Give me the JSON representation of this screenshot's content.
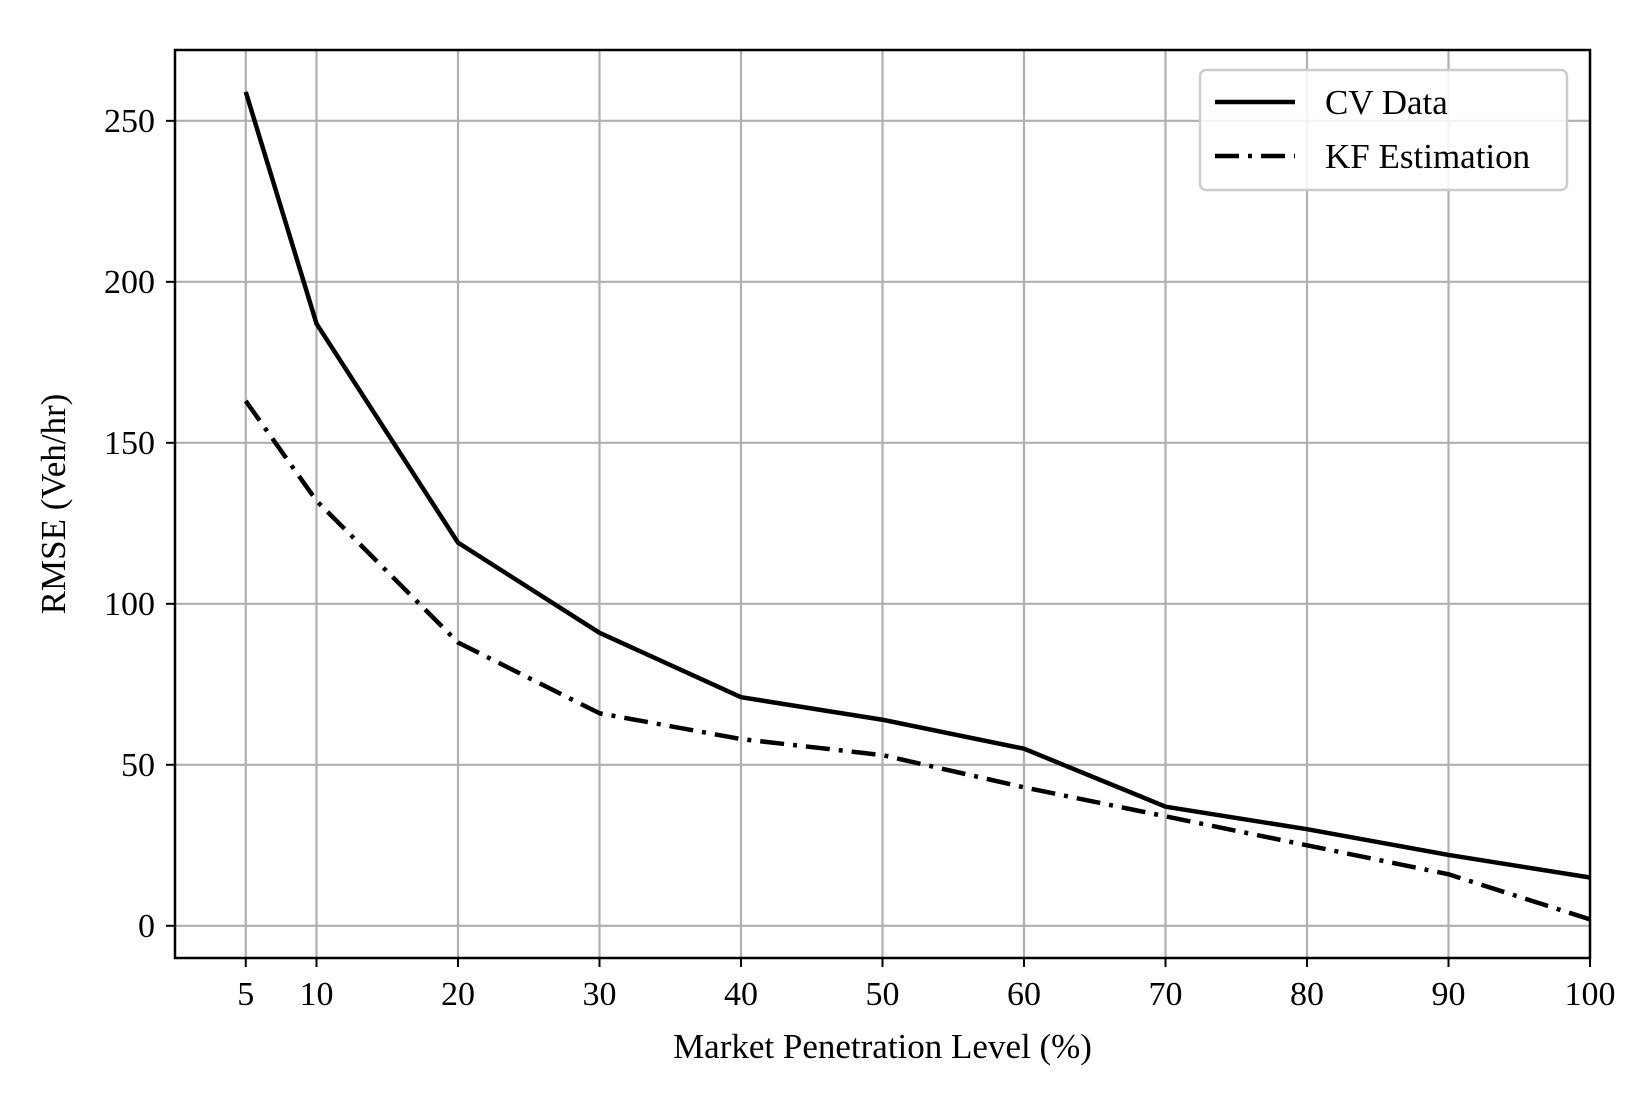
{
  "chart_data": {
    "type": "line",
    "title": "",
    "xlabel": "Market Penetration Level (%)",
    "ylabel": "RMSE (Veh/hr)",
    "x": [
      5,
      10,
      20,
      30,
      40,
      50,
      60,
      70,
      80,
      90,
      100
    ],
    "xticks": [
      5,
      10,
      20,
      30,
      40,
      50,
      60,
      70,
      80,
      90,
      100
    ],
    "xtick_labels": [
      "5",
      "10",
      "20",
      "30",
      "40",
      "50",
      "60",
      "70",
      "80",
      "90",
      "100"
    ],
    "yticks": [
      0,
      50,
      100,
      150,
      200,
      250
    ],
    "ytick_labels": [
      "0",
      "50",
      "100",
      "150",
      "200",
      "250"
    ],
    "xlim": [
      0,
      100
    ],
    "ylim": [
      -10,
      272
    ],
    "grid": true,
    "legend_position": "top-right",
    "series": [
      {
        "name": "CV Data",
        "line_style": "solid",
        "color": "#000000",
        "values": [
          259,
          187,
          119,
          91,
          71,
          64,
          55,
          37,
          30,
          22,
          15
        ]
      },
      {
        "name": "KF Estimation",
        "line_style": "dash-dot",
        "color": "#000000",
        "values": [
          163,
          132,
          88,
          66,
          58,
          53,
          43,
          34,
          25,
          16,
          2
        ]
      }
    ]
  }
}
